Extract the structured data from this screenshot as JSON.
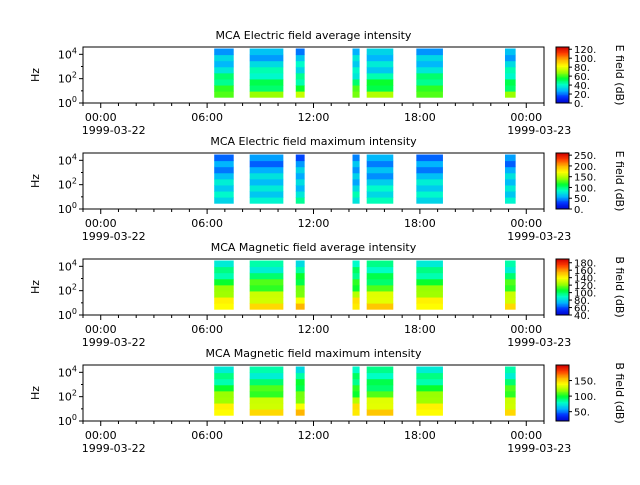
{
  "figure": {
    "colormap_stops": [
      "#0000c8",
      "#0030ff",
      "#00b4ff",
      "#00ffc8",
      "#00ff30",
      "#a0ff00",
      "#ffff00",
      "#ffb000",
      "#ff4000",
      "#d00000"
    ]
  },
  "chart_data": [
    {
      "type": "heatmap",
      "title": "MCA  Electric field average intensity",
      "ylabel": "Hz",
      "y_scale": "log",
      "ylim": [
        1,
        40000
      ],
      "y_ticks": [
        {
          "value": 1,
          "base": "10",
          "exp": "0"
        },
        {
          "value": 100,
          "base": "10",
          "exp": "2"
        },
        {
          "value": 10000,
          "base": "10",
          "exp": "4"
        }
      ],
      "x_ticks": [
        "00:00",
        "06:00",
        "12:00",
        "18:00",
        "00:00"
      ],
      "x_tick_hours": [
        0,
        6,
        12,
        18,
        24
      ],
      "xlim_hours": [
        -1,
        25
      ],
      "x_dates": [
        "1999-03-22",
        "1999-03-23"
      ],
      "colorbar": {
        "label": "E field (dB)",
        "range": [
          0,
          125
        ],
        "ticks": [
          "0.",
          "20.",
          "40.",
          "60.",
          "80.",
          "100.",
          "120."
        ],
        "tick_values": [
          0,
          20,
          40,
          60,
          80,
          100,
          120
        ]
      },
      "data_intervals_hours": [
        [
          6.4,
          7.5
        ],
        [
          8.4,
          10.3
        ],
        [
          11.0,
          11.5
        ],
        [
          14.2,
          14.6
        ],
        [
          15.0,
          16.5
        ],
        [
          17.8,
          19.3
        ],
        [
          22.8,
          23.4
        ]
      ],
      "intensity_profile": [
        0.55,
        0.45,
        0.4,
        0.35,
        0.3,
        0.28,
        0.25,
        0.22
      ],
      "intensity_range": [
        0,
        125
      ]
    },
    {
      "type": "heatmap",
      "title": "MCA  Electric field maximum intensity",
      "ylabel": "Hz",
      "y_scale": "log",
      "ylim": [
        1,
        40000
      ],
      "y_ticks": [
        {
          "value": 1,
          "base": "10",
          "exp": "0"
        },
        {
          "value": 100,
          "base": "10",
          "exp": "2"
        },
        {
          "value": 10000,
          "base": "10",
          "exp": "4"
        }
      ],
      "x_ticks": [
        "00:00",
        "06:00",
        "12:00",
        "18:00",
        "00:00"
      ],
      "x_tick_hours": [
        0,
        6,
        12,
        18,
        24
      ],
      "xlim_hours": [
        -1,
        25
      ],
      "x_dates": [
        "1999-03-22",
        "1999-03-23"
      ],
      "colorbar": {
        "label": "E field (dB)",
        "range": [
          0,
          260
        ],
        "ticks": [
          "0.",
          "50.",
          "100.",
          "150.",
          "200.",
          "250."
        ],
        "tick_values": [
          0,
          50,
          100,
          150,
          200,
          250
        ]
      },
      "data_intervals_hours": [
        [
          6.4,
          7.5
        ],
        [
          8.4,
          10.3
        ],
        [
          11.0,
          11.5
        ],
        [
          14.2,
          14.6
        ],
        [
          15.0,
          16.5
        ],
        [
          17.8,
          19.3
        ],
        [
          22.8,
          23.4
        ]
      ],
      "intensity_profile": [
        0.32,
        0.3,
        0.28,
        0.26,
        0.24,
        0.22,
        0.2,
        0.18
      ],
      "intensity_range": [
        0,
        260
      ]
    },
    {
      "type": "heatmap",
      "title": "MCA  Magnetic field average intensity",
      "ylabel": "Hz",
      "y_scale": "log",
      "ylim": [
        1,
        40000
      ],
      "y_ticks": [
        {
          "value": 1,
          "base": "10",
          "exp": "0"
        },
        {
          "value": 100,
          "base": "10",
          "exp": "2"
        },
        {
          "value": 10000,
          "base": "10",
          "exp": "4"
        }
      ],
      "x_ticks": [
        "00:00",
        "06:00",
        "12:00",
        "18:00",
        "00:00"
      ],
      "x_tick_hours": [
        0,
        6,
        12,
        18,
        24
      ],
      "xlim_hours": [
        -1,
        25
      ],
      "x_dates": [
        "1999-03-22",
        "1999-03-23"
      ],
      "colorbar": {
        "label": "B field (dB)",
        "range": [
          40,
          190
        ],
        "ticks": [
          "40.",
          "60.",
          "80.",
          "100.",
          "120.",
          "140.",
          "160.",
          "180."
        ],
        "tick_values": [
          40,
          60,
          80,
          100,
          120,
          140,
          160,
          180
        ]
      },
      "data_intervals_hours": [
        [
          6.4,
          7.5
        ],
        [
          8.4,
          10.3
        ],
        [
          11.0,
          11.5
        ],
        [
          14.2,
          14.6
        ],
        [
          15.0,
          16.5
        ],
        [
          17.8,
          19.3
        ],
        [
          22.8,
          23.4
        ]
      ],
      "intensity_profile": [
        0.72,
        0.66,
        0.58,
        0.5,
        0.45,
        0.4,
        0.36,
        0.33
      ],
      "intensity_range": [
        40,
        190
      ]
    },
    {
      "type": "heatmap",
      "title": "MCA  Magnetic field maximum intensity",
      "ylabel": "Hz",
      "y_scale": "log",
      "ylim": [
        1,
        40000
      ],
      "y_ticks": [
        {
          "value": 1,
          "base": "10",
          "exp": "0"
        },
        {
          "value": 100,
          "base": "10",
          "exp": "2"
        },
        {
          "value": 10000,
          "base": "10",
          "exp": "4"
        }
      ],
      "x_ticks": [
        "00:00",
        "06:00",
        "12:00",
        "18:00",
        "00:00"
      ],
      "x_tick_hours": [
        0,
        6,
        12,
        18,
        24
      ],
      "xlim_hours": [
        -1,
        25
      ],
      "x_dates": [
        "1999-03-22",
        "1999-03-23"
      ],
      "colorbar": {
        "label": "B field (dB)",
        "range": [
          20,
          200
        ],
        "ticks": [
          "50.",
          "100.",
          "150."
        ],
        "tick_values": [
          50,
          100,
          150
        ]
      },
      "data_intervals_hours": [
        [
          6.4,
          7.5
        ],
        [
          8.4,
          10.3
        ],
        [
          11.0,
          11.5
        ],
        [
          14.2,
          14.6
        ],
        [
          15.0,
          16.5
        ],
        [
          17.8,
          19.3
        ],
        [
          22.8,
          23.4
        ]
      ],
      "intensity_profile": [
        0.72,
        0.66,
        0.58,
        0.5,
        0.45,
        0.4,
        0.36,
        0.33
      ],
      "intensity_range": [
        20,
        200
      ]
    }
  ]
}
